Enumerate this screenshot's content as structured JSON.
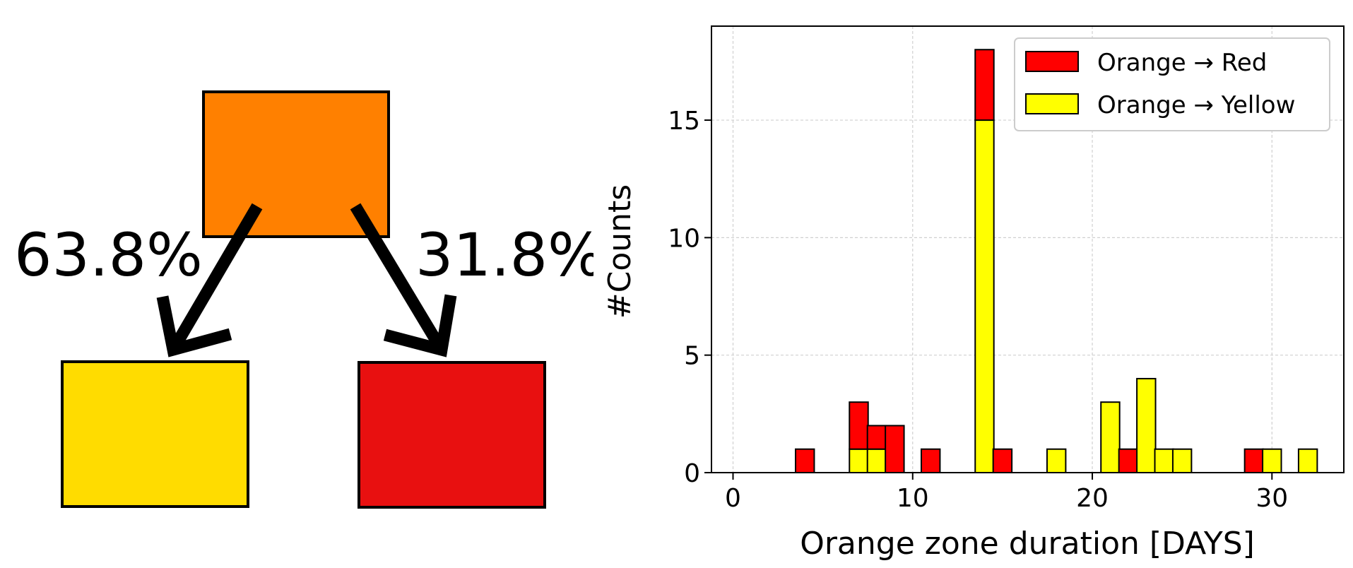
{
  "diagram": {
    "boxes": {
      "top": {
        "color": "#FF8000"
      },
      "left": {
        "color": "#FFDC00"
      },
      "right": {
        "color": "#E81010"
      }
    },
    "left_percentage": "63.8%",
    "right_percentage": "31.8%"
  },
  "chart_data": {
    "type": "bar",
    "stacked": true,
    "title": "",
    "xlabel": "Orange zone duration [DAYS]",
    "ylabel": "#Counts",
    "xlim": [
      -1.2,
      34
    ],
    "ylim": [
      0,
      19
    ],
    "xticks": [
      0,
      10,
      20,
      30
    ],
    "yticks": [
      0,
      5,
      10,
      15
    ],
    "grid": true,
    "legend_position": "top-right",
    "bin_width": 1.04,
    "series": [
      {
        "name": "Orange → Red",
        "color": "#FF0000",
        "x": [
          1,
          2,
          3,
          4,
          5,
          6,
          7,
          8,
          9,
          10,
          11,
          12,
          13,
          14,
          15,
          16,
          17,
          18,
          19,
          20,
          21,
          22,
          23,
          24,
          25,
          26,
          27,
          28,
          29,
          30,
          31,
          32
        ],
        "values": [
          0,
          0,
          0,
          1,
          0,
          0,
          2,
          1,
          2,
          0,
          1,
          0,
          0,
          3,
          1,
          0,
          0,
          0,
          0,
          0,
          0,
          1,
          0,
          0,
          0,
          0,
          0,
          0,
          1,
          0,
          0,
          0
        ]
      },
      {
        "name": "Orange → Yellow",
        "color": "#FFFF00",
        "x": [
          1,
          2,
          3,
          4,
          5,
          6,
          7,
          8,
          9,
          10,
          11,
          12,
          13,
          14,
          15,
          16,
          17,
          18,
          19,
          20,
          21,
          22,
          23,
          24,
          25,
          26,
          27,
          28,
          29,
          30,
          31,
          32
        ],
        "values": [
          0,
          0,
          0,
          0,
          0,
          0,
          1,
          1,
          0,
          0,
          0,
          0,
          0,
          15,
          0,
          0,
          0,
          1,
          0,
          0,
          3,
          0,
          4,
          1,
          1,
          0,
          0,
          0,
          0,
          1,
          0,
          1
        ]
      }
    ]
  }
}
